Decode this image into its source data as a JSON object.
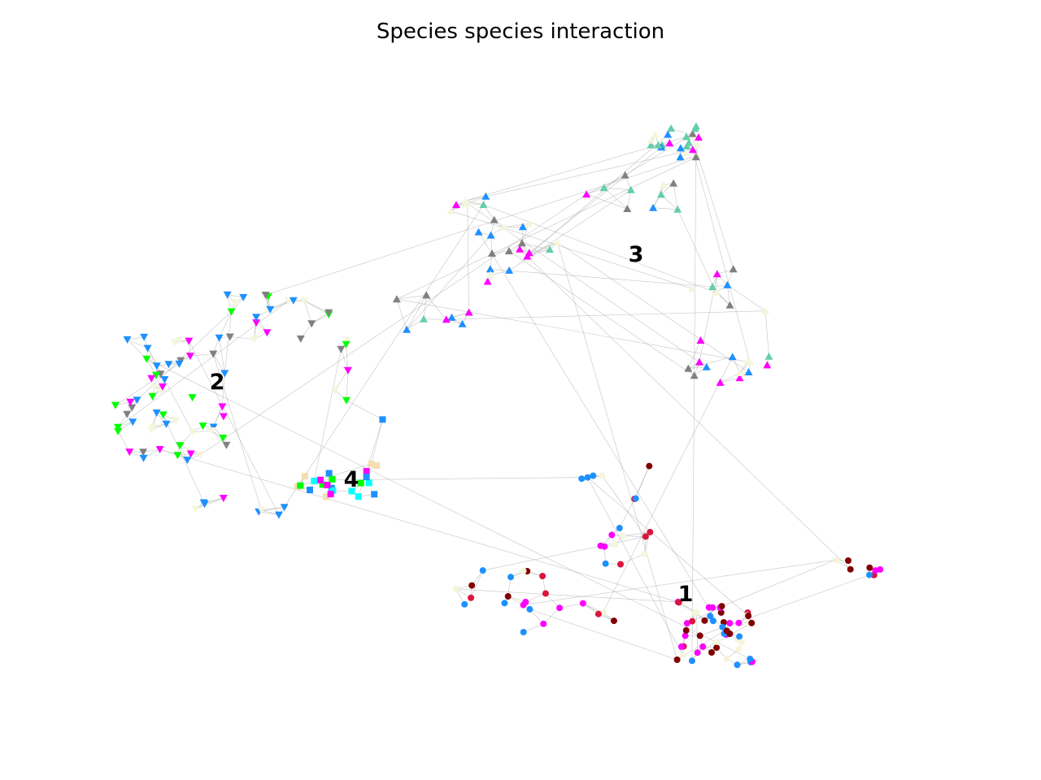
{
  "title": "Species species interaction",
  "colors": {
    "edge": "#9e9e9e",
    "magenta": "#ff00ff",
    "blue": "#1e90ff",
    "crimson": "#dc143c",
    "maroon": "#800000",
    "gray": "#808080",
    "aquamarine": "#66cdaa",
    "lime": "#00ff00",
    "cyan": "#00ffff",
    "beige": "#f5f5dc",
    "wheat": "#f5deb3"
  },
  "clusters": [
    {
      "id": "1",
      "label": "1",
      "marker": "circle"
    },
    {
      "id": "2",
      "label": "2",
      "marker": "triangle-down"
    },
    {
      "id": "3",
      "label": "3",
      "marker": "triangle-up"
    },
    {
      "id": "4",
      "label": "4",
      "marker": "square"
    }
  ]
}
